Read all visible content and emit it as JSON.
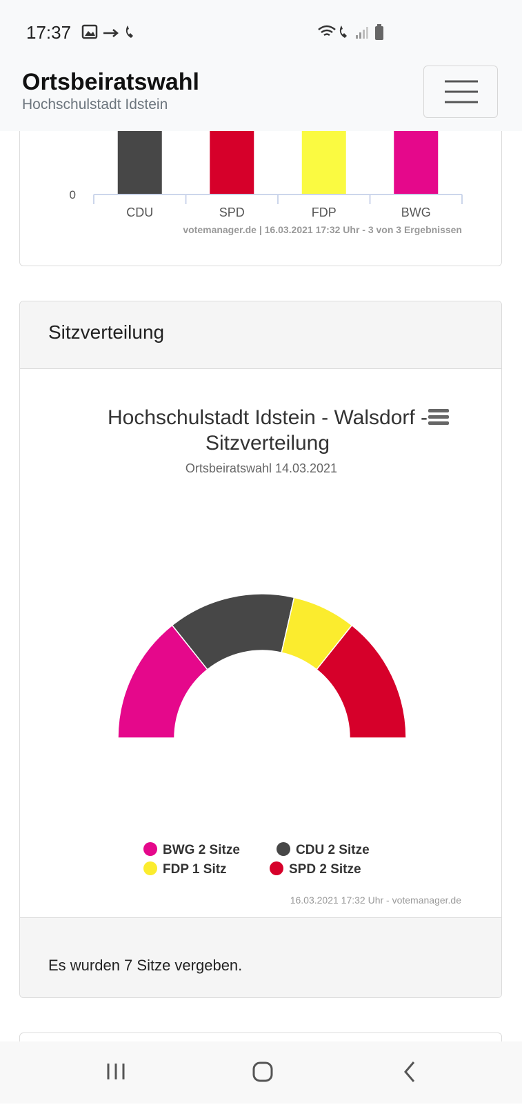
{
  "status_bar": {
    "time": "17:37"
  },
  "header": {
    "title": "Ortsbeiratswahl",
    "subtitle": "Hochschulstadt Idstein"
  },
  "bar_chart": {
    "type": "bar",
    "categories": [
      "CDU",
      "SPD",
      "FDP",
      "BWG"
    ],
    "colors": [
      "#474747",
      "#d6002a",
      "#fafa41",
      "#e5088b"
    ],
    "yticks": [
      0
    ],
    "credit": "votemanager.de | 16.03.2021 17:32 Uhr - 3 von 3 Ergebnissen"
  },
  "seat_section": {
    "heading": "Sitzverteilung",
    "footer": "Es wurden 7 Sitze vergeben."
  },
  "seat_chart": {
    "type": "semicircle-pie",
    "title": "Hochschulstadt Idstein - Walsdorf - Sitzverteilung",
    "subtitle": "Ortsbeiratswahl 14.03.2021",
    "series": [
      {
        "name": "BWG",
        "value": 2,
        "label": "BWG 2 Sitze",
        "color": "#e5088b"
      },
      {
        "name": "CDU",
        "value": 2,
        "label": "CDU 2 Sitze",
        "color": "#474747"
      },
      {
        "name": "FDP",
        "value": 1,
        "label": "FDP 1 Sitz",
        "color": "#fbec2e"
      },
      {
        "name": "SPD",
        "value": 2,
        "label": "SPD 2 Sitze",
        "color": "#d6002a"
      }
    ],
    "credit": "16.03.2021 17:32 Uhr - votemanager.de"
  }
}
